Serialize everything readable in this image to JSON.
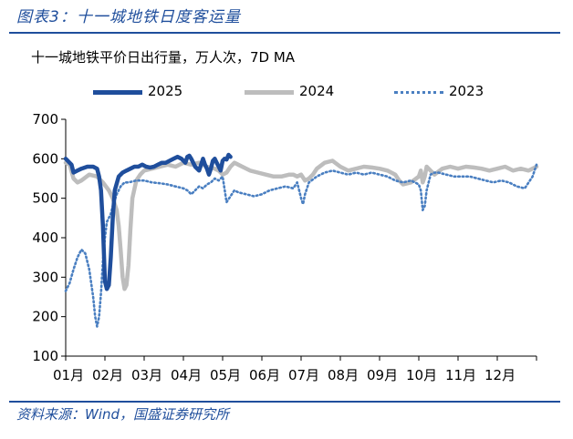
{
  "figure_title": "图表3：十一城地铁日度客运量",
  "source": "资料来源：Wind，国盛证券研究所",
  "chart_data": {
    "type": "line",
    "title": "十一城地铁平价日出行量，万人次，7D MA",
    "xlabel": "",
    "ylabel": "",
    "ylim": [
      100,
      700
    ],
    "yticks": [
      100,
      200,
      300,
      400,
      500,
      600,
      700
    ],
    "xlim": [
      1,
      13
    ],
    "x_categories": [
      "01月",
      "02月",
      "03月",
      "04月",
      "05月",
      "06月",
      "07月",
      "08月",
      "09月",
      "10月",
      "11月",
      "12月"
    ],
    "legend_position": "top",
    "grid": false,
    "series": [
      {
        "name": "2025",
        "color": "#1f4e9c",
        "style": "solid-thick",
        "x": [
          1.0,
          1.05,
          1.1,
          1.15,
          1.2,
          1.3,
          1.4,
          1.55,
          1.7,
          1.8,
          1.85,
          1.9,
          1.95,
          2.0,
          2.05,
          2.1,
          2.15,
          2.2,
          2.25,
          2.35,
          2.45,
          2.55,
          2.65,
          2.75,
          2.85,
          2.95,
          3.05,
          3.15,
          3.25,
          3.35,
          3.45,
          3.55,
          3.65,
          3.75,
          3.85,
          3.95,
          4.05,
          4.1,
          4.15,
          4.2,
          4.3,
          4.4,
          4.5,
          4.55,
          4.6,
          4.65,
          4.7,
          4.75,
          4.8,
          4.85,
          4.9,
          4.95,
          5.0,
          5.05,
          5.1,
          5.15,
          5.2
        ],
        "values": [
          600,
          595,
          590,
          585,
          565,
          570,
          575,
          580,
          580,
          575,
          555,
          520,
          430,
          290,
          270,
          280,
          350,
          450,
          520,
          555,
          565,
          570,
          575,
          580,
          580,
          585,
          580,
          578,
          580,
          585,
          590,
          590,
          595,
          600,
          605,
          600,
          590,
          605,
          608,
          600,
          580,
          570,
          600,
          585,
          575,
          560,
          575,
          595,
          600,
          590,
          580,
          570,
          595,
          600,
          598,
          610,
          605
        ]
      },
      {
        "name": "2024",
        "color": "#bdbdbd",
        "style": "solid-thick",
        "x": [
          1.0,
          1.1,
          1.2,
          1.3,
          1.4,
          1.6,
          1.8,
          1.95,
          2.1,
          2.2,
          2.3,
          2.35,
          2.4,
          2.45,
          2.5,
          2.55,
          2.6,
          2.65,
          2.7,
          2.8,
          2.9,
          3.0,
          3.2,
          3.4,
          3.6,
          3.8,
          4.0,
          4.2,
          4.4,
          4.6,
          4.8,
          4.9,
          5.0,
          5.1,
          5.2,
          5.3,
          5.4,
          5.5,
          5.7,
          5.9,
          6.1,
          6.3,
          6.5,
          6.7,
          6.8,
          6.9,
          7.0,
          7.1,
          7.2,
          7.3,
          7.4,
          7.6,
          7.8,
          8.0,
          8.2,
          8.4,
          8.6,
          8.8,
          9.0,
          9.2,
          9.4,
          9.5,
          9.6,
          9.8,
          10.0,
          10.05,
          10.1,
          10.15,
          10.2,
          10.3,
          10.4,
          10.6,
          10.8,
          11.0,
          11.2,
          11.4,
          11.6,
          11.8,
          12.0,
          12.2,
          12.4,
          12.6,
          12.8,
          13.0
        ],
        "values": [
          590,
          585,
          550,
          540,
          545,
          560,
          555,
          540,
          520,
          500,
          470,
          430,
          370,
          300,
          270,
          280,
          330,
          420,
          500,
          545,
          560,
          570,
          575,
          580,
          585,
          580,
          590,
          585,
          590,
          580,
          575,
          570,
          560,
          565,
          580,
          590,
          585,
          580,
          570,
          565,
          560,
          555,
          555,
          560,
          560,
          555,
          560,
          545,
          550,
          560,
          575,
          590,
          595,
          580,
          570,
          575,
          580,
          578,
          575,
          570,
          560,
          545,
          535,
          540,
          555,
          570,
          540,
          555,
          580,
          570,
          560,
          575,
          580,
          575,
          580,
          578,
          575,
          570,
          575,
          580,
          570,
          575,
          570,
          580
        ]
      },
      {
        "name": "2023",
        "color": "#4a7fc1",
        "style": "dotted",
        "x": [
          1.0,
          1.1,
          1.2,
          1.3,
          1.4,
          1.5,
          1.6,
          1.7,
          1.75,
          1.8,
          1.85,
          1.9,
          1.95,
          2.0,
          2.05,
          2.1,
          2.15,
          2.2,
          2.3,
          2.4,
          2.5,
          2.6,
          2.8,
          3.0,
          3.2,
          3.4,
          3.6,
          3.8,
          4.0,
          4.1,
          4.2,
          4.3,
          4.4,
          4.5,
          4.6,
          4.7,
          4.8,
          4.9,
          5.0,
          5.1,
          5.2,
          5.3,
          5.4,
          5.6,
          5.8,
          6.0,
          6.2,
          6.4,
          6.6,
          6.8,
          6.9,
          7.0,
          7.05,
          7.1,
          7.2,
          7.4,
          7.6,
          7.8,
          8.0,
          8.2,
          8.4,
          8.6,
          8.8,
          9.0,
          9.2,
          9.4,
          9.6,
          9.8,
          9.9,
          10.0,
          10.05,
          10.1,
          10.15,
          10.2,
          10.3,
          10.4,
          10.5,
          10.7,
          10.9,
          11.1,
          11.3,
          11.5,
          11.7,
          11.9,
          12.1,
          12.3,
          12.5,
          12.7,
          12.8,
          12.9,
          13.0
        ],
        "values": [
          265,
          285,
          320,
          350,
          370,
          360,
          320,
          250,
          200,
          175,
          200,
          260,
          340,
          400,
          440,
          450,
          460,
          480,
          510,
          530,
          540,
          540,
          545,
          545,
          540,
          538,
          535,
          530,
          525,
          520,
          510,
          520,
          530,
          525,
          535,
          540,
          550,
          545,
          555,
          490,
          505,
          520,
          515,
          510,
          505,
          510,
          520,
          525,
          530,
          525,
          540,
          500,
          485,
          510,
          540,
          555,
          565,
          570,
          565,
          560,
          565,
          560,
          565,
          560,
          555,
          545,
          540,
          545,
          540,
          535,
          520,
          470,
          480,
          520,
          560,
          565,
          565,
          560,
          555,
          555,
          555,
          550,
          545,
          540,
          545,
          540,
          530,
          525,
          540,
          555,
          585
        ]
      }
    ]
  }
}
